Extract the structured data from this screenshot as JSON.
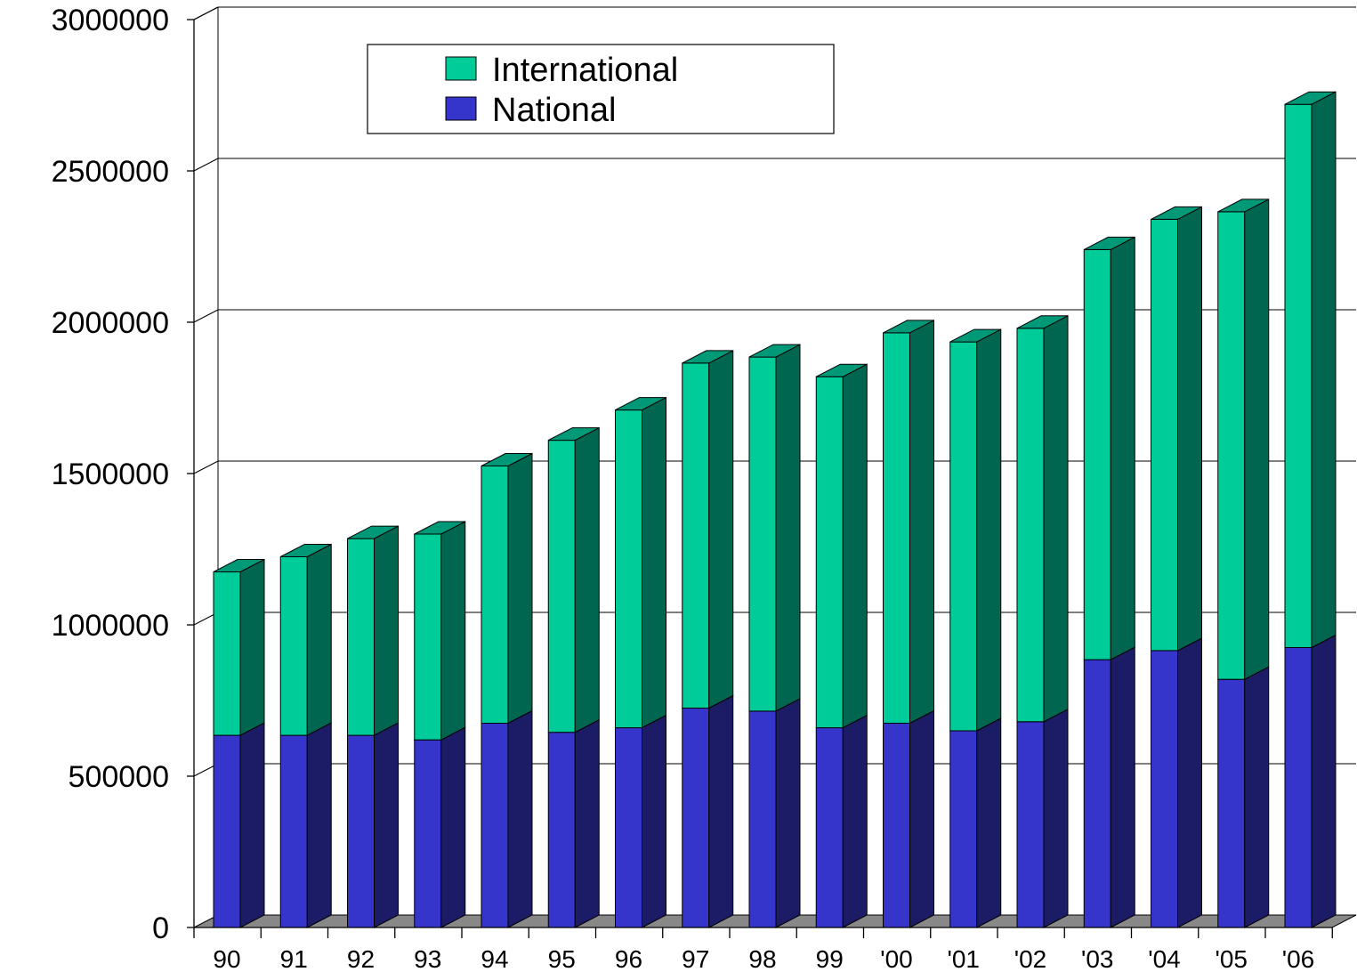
{
  "chart_data": {
    "type": "bar",
    "stacked": true,
    "three_d": true,
    "categories": [
      "90",
      "91",
      "92",
      "93",
      "94",
      "95",
      "96",
      "97",
      "98",
      "99",
      "'00",
      "'01",
      "'02",
      "'03",
      "'04",
      "'05",
      "'06"
    ],
    "series": [
      {
        "name": "National",
        "color": "#3535cc",
        "side_color": "#1b1b66",
        "values": [
          635000,
          635000,
          635000,
          620000,
          675000,
          645000,
          660000,
          725000,
          715000,
          660000,
          675000,
          650000,
          680000,
          885000,
          915000,
          820000,
          925000
        ]
      },
      {
        "name": "International",
        "color": "#00cc99",
        "side_color": "#006650",
        "values": [
          540000,
          590000,
          650000,
          680000,
          850000,
          965000,
          1050000,
          1140000,
          1170000,
          1160000,
          1290000,
          1285000,
          1300000,
          1355000,
          1425000,
          1545000,
          1795000
        ]
      }
    ],
    "yticks": [
      "0",
      "500000",
      "1000000",
      "1500000",
      "2000000",
      "2500000",
      "3000000"
    ],
    "ylim": [
      0,
      3000000
    ],
    "grid": true,
    "legend_position": "top-left",
    "floor_color": "#888888"
  }
}
